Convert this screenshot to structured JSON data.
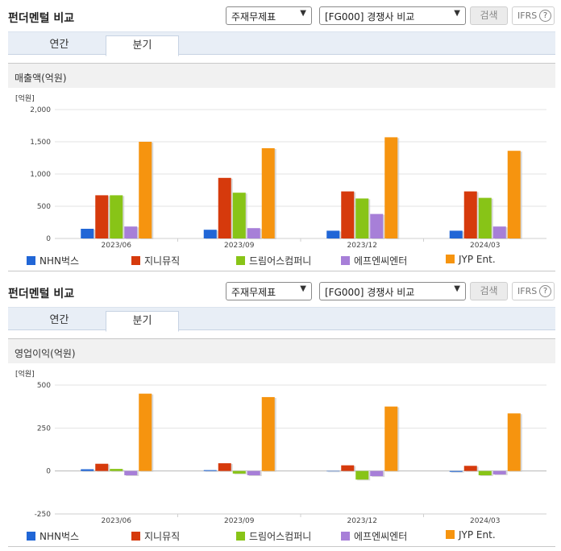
{
  "panels": [
    {
      "header": {
        "title": "펀더멘털 비교",
        "select1": "주재무제표",
        "select2": "[FG000] 경쟁사 비교",
        "search_label": "검색",
        "ifrs_label": "IFRS",
        "help_label": "?"
      },
      "tabs": [
        {
          "label": "연간",
          "active": false
        },
        {
          "label": "분기",
          "active": true
        }
      ],
      "section_title": "매출액(억원)"
    },
    {
      "header": {
        "title": "펀더멘털 비교",
        "select1": "주재무제표",
        "select2": "[FG000] 경쟁사 비교",
        "search_label": "검색",
        "ifrs_label": "IFRS",
        "help_label": "?"
      },
      "tabs": [
        {
          "label": "연간",
          "active": false
        },
        {
          "label": "분기",
          "active": true
        }
      ],
      "section_title": "영업이익(억원)"
    }
  ],
  "chart_data": [
    {
      "type": "bar",
      "unit_label": "[억원]",
      "categories": [
        "2023/06",
        "2023/09",
        "2023/12",
        "2024/03"
      ],
      "ylim": [
        0,
        2000
      ],
      "yticks": [
        0,
        500,
        1000,
        1500,
        2000
      ],
      "ytick_labels": [
        "0",
        "500",
        "1,000",
        "1,500",
        "2,000"
      ],
      "grid": true,
      "legend": "bottom",
      "series": [
        {
          "name": "NHN벅스",
          "color": "#2166d6",
          "values": [
            150,
            135,
            120,
            120
          ]
        },
        {
          "name": "지니뮤직",
          "color": "#d63a0c",
          "values": [
            670,
            940,
            730,
            730
          ]
        },
        {
          "name": "드림어스컴퍼니",
          "color": "#88c417",
          "values": [
            670,
            710,
            620,
            630
          ]
        },
        {
          "name": "에프엔씨엔터",
          "color": "#a77fd8",
          "values": [
            185,
            160,
            380,
            185
          ]
        },
        {
          "name": "JYP Ent.",
          "color": "#f6940f",
          "values": [
            1500,
            1400,
            1570,
            1360
          ]
        }
      ]
    },
    {
      "type": "bar",
      "unit_label": "[억원]",
      "categories": [
        "2023/06",
        "2023/09",
        "2023/12",
        "2024/03"
      ],
      "ylim": [
        -250,
        500
      ],
      "yticks": [
        -250,
        0,
        250,
        500
      ],
      "ytick_labels": [
        "-250",
        "0",
        "250",
        "500"
      ],
      "grid": true,
      "legend": "bottom",
      "series": [
        {
          "name": "NHN벅스",
          "color": "#2166d6",
          "values": [
            10,
            5,
            0,
            -5
          ]
        },
        {
          "name": "지니뮤직",
          "color": "#d63a0c",
          "values": [
            42,
            45,
            33,
            30
          ]
        },
        {
          "name": "드림어스컴퍼니",
          "color": "#88c417",
          "values": [
            12,
            -15,
            -50,
            -25
          ]
        },
        {
          "name": "에프엔씨엔터",
          "color": "#a77fd8",
          "values": [
            -25,
            -25,
            -30,
            -20
          ]
        },
        {
          "name": "JYP Ent.",
          "color": "#f6940f",
          "values": [
            450,
            430,
            375,
            335
          ]
        }
      ]
    }
  ]
}
